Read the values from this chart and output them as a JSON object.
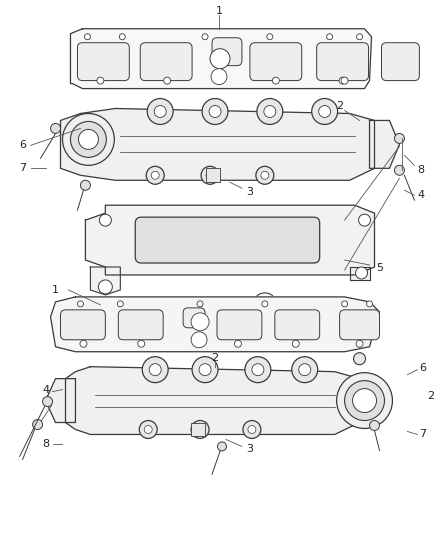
{
  "background_color": "#ffffff",
  "line_color": "#3a3a3a",
  "fig_width": 4.38,
  "fig_height": 5.33,
  "dpi": 100
}
